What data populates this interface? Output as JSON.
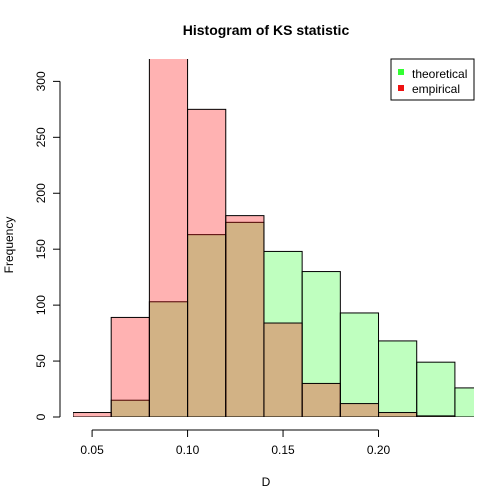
{
  "chart_data": {
    "type": "bar",
    "title": "Histogram of KS statistic",
    "xlabel": "D",
    "ylabel": "Frequency",
    "xlim": [
      0.04,
      0.25
    ],
    "ylim": [
      0,
      320
    ],
    "x_ticks": [
      0.05,
      0.1,
      0.15,
      0.2
    ],
    "x_tick_labels": [
      "0.05",
      "0.10",
      "0.15",
      "0.20"
    ],
    "y_ticks": [
      0,
      50,
      100,
      150,
      200,
      250,
      300
    ],
    "y_tick_labels": [
      "0",
      "50",
      "100",
      "150",
      "200",
      "250",
      "300"
    ],
    "legend": {
      "position": "top-right"
    },
    "series": [
      {
        "name": "theoretical",
        "color": "#33ff33",
        "fill": "rgba(0,255,0,0.25)",
        "bins": [
          {
            "x0": 0.06,
            "x1": 0.08,
            "count": 15
          },
          {
            "x0": 0.08,
            "x1": 0.1,
            "count": 103
          },
          {
            "x0": 0.1,
            "x1": 0.12,
            "count": 163
          },
          {
            "x0": 0.12,
            "x1": 0.14,
            "count": 174
          },
          {
            "x0": 0.14,
            "x1": 0.16,
            "count": 148
          },
          {
            "x0": 0.16,
            "x1": 0.18,
            "count": 130
          },
          {
            "x0": 0.18,
            "x1": 0.2,
            "count": 93
          },
          {
            "x0": 0.2,
            "x1": 0.22,
            "count": 68
          },
          {
            "x0": 0.22,
            "x1": 0.24,
            "count": 49
          },
          {
            "x0": 0.24,
            "x1": 0.26,
            "count": 26
          }
        ]
      },
      {
        "name": "empirical",
        "color": "#ee1111",
        "fill": "rgba(255,0,0,0.30)",
        "bins": [
          {
            "x0": 0.04,
            "x1": 0.06,
            "count": 4
          },
          {
            "x0": 0.06,
            "x1": 0.08,
            "count": 89
          },
          {
            "x0": 0.08,
            "x1": 0.1,
            "count": 322
          },
          {
            "x0": 0.1,
            "x1": 0.12,
            "count": 275
          },
          {
            "x0": 0.12,
            "x1": 0.14,
            "count": 180
          },
          {
            "x0": 0.14,
            "x1": 0.16,
            "count": 84
          },
          {
            "x0": 0.16,
            "x1": 0.18,
            "count": 30
          },
          {
            "x0": 0.18,
            "x1": 0.2,
            "count": 12
          },
          {
            "x0": 0.2,
            "x1": 0.22,
            "count": 4
          },
          {
            "x0": 0.22,
            "x1": 0.24,
            "count": 1
          }
        ]
      }
    ]
  }
}
